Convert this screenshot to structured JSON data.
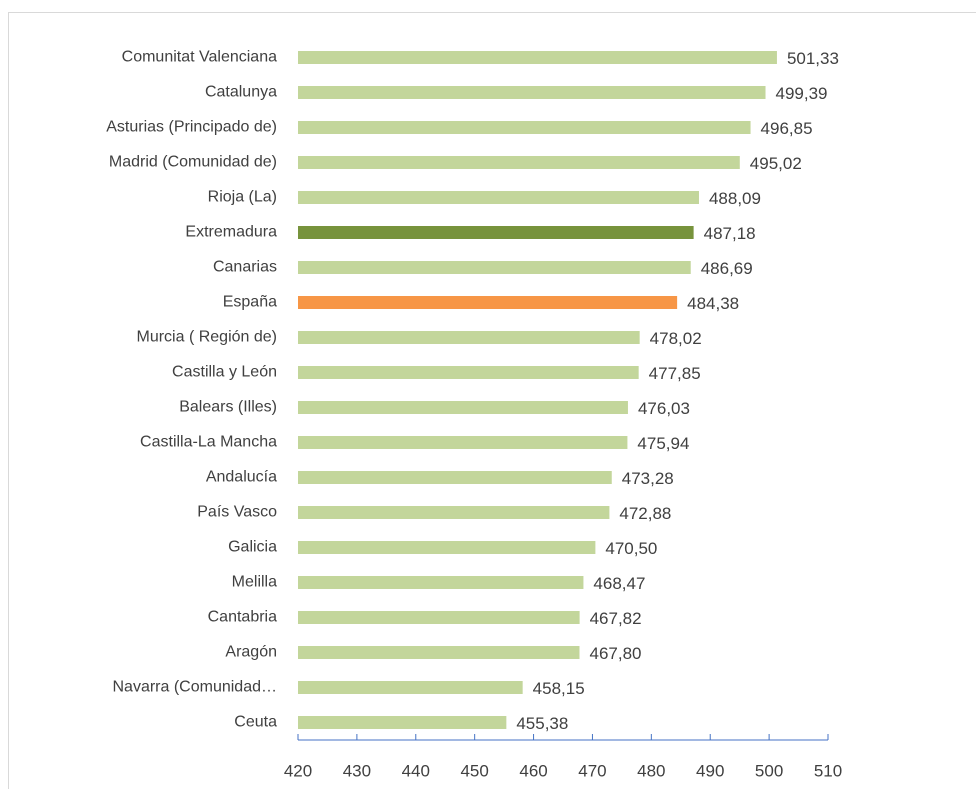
{
  "chart_data": {
    "type": "bar",
    "orientation": "horizontal",
    "categories": [
      "Comunitat Valenciana",
      "Catalunya",
      "Asturias (Principado de)",
      "Madrid (Comunidad de)",
      "Rioja (La)",
      "Extremadura",
      "Canarias",
      "España",
      "Murcia ( Región de)",
      "Castilla y León",
      "Balears (Illes)",
      "Castilla-La Mancha",
      "Andalucía",
      "País Vasco",
      "Galicia",
      "Melilla",
      "Cantabria",
      "Aragón",
      "Navarra (Comunidad…",
      "Ceuta"
    ],
    "values": [
      501.33,
      499.39,
      496.85,
      495.02,
      488.09,
      487.18,
      486.69,
      484.38,
      478.02,
      477.85,
      476.03,
      475.94,
      473.28,
      472.88,
      470.5,
      468.47,
      467.82,
      467.8,
      458.15,
      455.38
    ],
    "value_labels": [
      "501,33",
      "499,39",
      "496,85",
      "495,02",
      "488,09",
      "487,18",
      "486,69",
      "484,38",
      "478,02",
      "477,85",
      "476,03",
      "475,94",
      "473,28",
      "472,88",
      "470,50",
      "468,47",
      "467,82",
      "467,80",
      "458,15",
      "455,38"
    ],
    "colors": [
      "#c3d69b",
      "#c3d69b",
      "#c3d69b",
      "#c3d69b",
      "#c3d69b",
      "#77933c",
      "#c3d69b",
      "#f79646",
      "#c3d69b",
      "#c3d69b",
      "#c3d69b",
      "#c3d69b",
      "#c3d69b",
      "#c3d69b",
      "#c3d69b",
      "#c3d69b",
      "#c3d69b",
      "#c3d69b",
      "#c3d69b",
      "#c3d69b"
    ],
    "xlim": [
      420,
      510
    ],
    "xticks": [
      420,
      430,
      440,
      450,
      460,
      470,
      480,
      490,
      500,
      510
    ]
  }
}
